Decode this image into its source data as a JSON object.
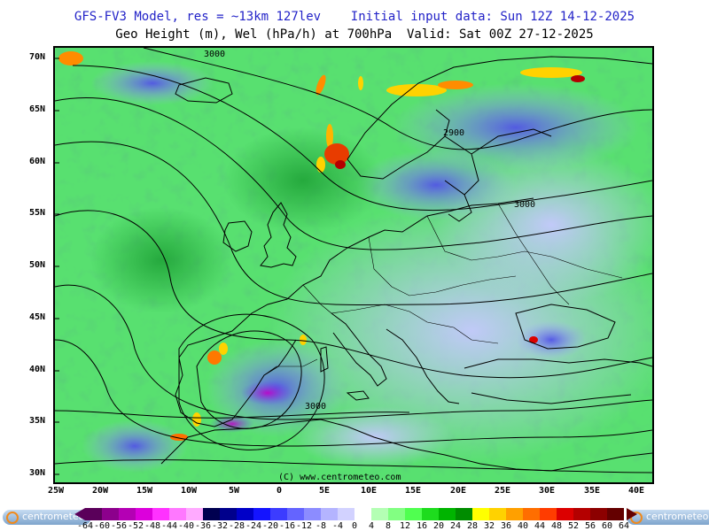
{
  "title_line1": "GFS-FV3 Model, res = ~13km 127lev    Initial input data: Sun 12Z 14-12-2025",
  "title_line2": "Geo Height (m), Wel (hPa/h) at 700hPa  Valid: Sat 00Z 27-12-2025",
  "copyright": "(C) www.centrometeo.com",
  "contour_labels": [
    "3000",
    "2900",
    "3000",
    "3000"
  ],
  "lat_labels": [
    "70N",
    "65N",
    "60N",
    "55N",
    "50N",
    "45N",
    "40N",
    "35N",
    "30N"
  ],
  "lon_labels": [
    "25W",
    "20W",
    "15W",
    "10W",
    "5W",
    "0",
    "5E",
    "10E",
    "15E",
    "20E",
    "25E",
    "30E",
    "35E",
    "40E"
  ],
  "logo_text": "centrometeo",
  "color_scale": {
    "ticks": [
      "-64",
      "-60",
      "-56",
      "-52",
      "-48",
      "-44",
      "-40",
      "-36",
      "-32",
      "-28",
      "-24",
      "-20",
      "-16",
      "-12",
      "-8",
      "-4",
      "0",
      "4",
      "8",
      "12",
      "16",
      "20",
      "24",
      "28",
      "32",
      "36",
      "40",
      "44",
      "48",
      "52",
      "56",
      "60",
      "64"
    ],
    "colors": [
      "#5a005a",
      "#8c008c",
      "#b400b4",
      "#dc00dc",
      "#ff32ff",
      "#ff78ff",
      "#ffaaff",
      "#000050",
      "#00008c",
      "#0000c8",
      "#1414ff",
      "#3c3cff",
      "#6464ff",
      "#8c8cff",
      "#b4b4ff",
      "#d2d2ff",
      "#ffffff",
      "#b4ffb4",
      "#82ff82",
      "#50ff50",
      "#1edc1e",
      "#00b400",
      "#008c00",
      "#ffff00",
      "#ffd200",
      "#ffa000",
      "#ff6e00",
      "#ff3c00",
      "#dc0000",
      "#b40000",
      "#8c0000",
      "#640000"
    ]
  },
  "colors": {
    "title_blue": "#2323c8",
    "field_green": "#4de06a",
    "field_blue": "#8a8cff",
    "land_line": "#000000"
  }
}
